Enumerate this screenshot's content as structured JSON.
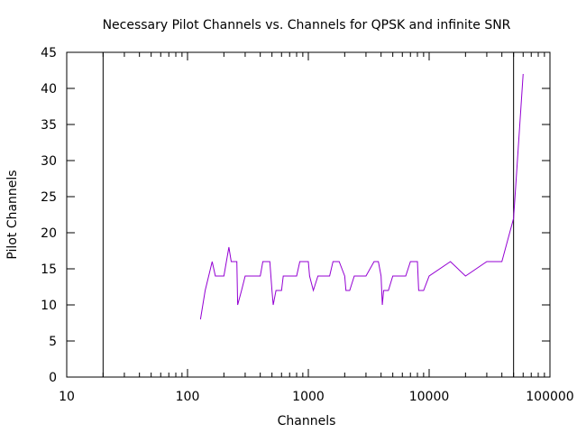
{
  "chart_data": {
    "type": "line",
    "title": "Necessary Pilot Channels vs. Channels for QPSK and infinite SNR",
    "xlabel": "Channels",
    "ylabel": "Pilot Channels",
    "x_scale": "log",
    "xlim": [
      10,
      100000
    ],
    "ylim": [
      0,
      45
    ],
    "x_ticks": [
      10,
      100,
      1000,
      10000,
      100000
    ],
    "x_tick_labels": [
      "10",
      "100",
      "1000",
      "10000",
      "100000"
    ],
    "y_ticks": [
      0,
      5,
      10,
      15,
      20,
      25,
      30,
      35,
      40,
      45
    ],
    "y_tick_labels": [
      "0",
      "5",
      "10",
      "15",
      "20",
      "25",
      "30",
      "35",
      "40",
      "45"
    ],
    "grid": false,
    "legend": "none",
    "line_color": "#9400d3",
    "vertical_lines": [
      20,
      50000
    ],
    "series": [
      {
        "x": [
          128,
          140,
          160,
          170,
          200,
          220,
          230,
          256,
          260,
          280,
          300,
          320,
          400,
          420,
          480,
          500,
          512,
          540,
          600,
          620,
          800,
          850,
          1000,
          1024,
          1100,
          1200,
          1500,
          1600,
          1800,
          2000,
          2048,
          2200,
          2400,
          3000,
          3500,
          3800,
          4000,
          4096,
          4200,
          4600,
          5000,
          6000,
          6400,
          7000,
          8000,
          8192,
          9000,
          10000,
          15000,
          20000,
          30000,
          40000,
          50000,
          60000
        ],
        "y": [
          8,
          12,
          16,
          14,
          14,
          18,
          16,
          16,
          10,
          12,
          14,
          14,
          14,
          16,
          16,
          12,
          10,
          12,
          12,
          14,
          14,
          16,
          16,
          14,
          12,
          14,
          14,
          16,
          16,
          14,
          12,
          12,
          14,
          14,
          16,
          16,
          14,
          10,
          12,
          12,
          14,
          14,
          14,
          16,
          16,
          12,
          12,
          14,
          16,
          14,
          16,
          16,
          22,
          42
        ]
      }
    ]
  }
}
